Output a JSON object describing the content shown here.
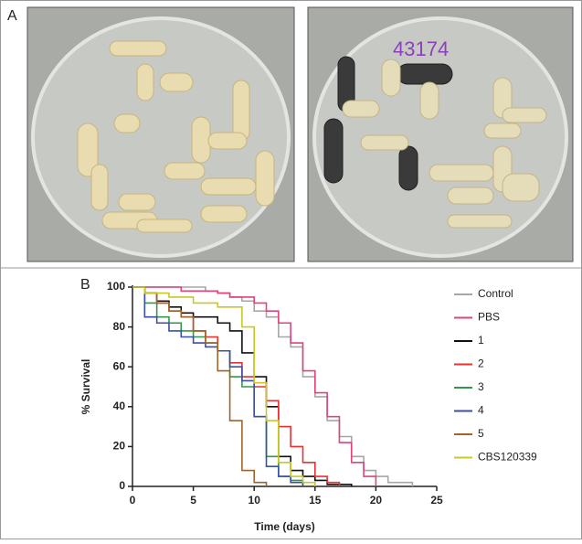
{
  "panel_a": {
    "label": "A"
  },
  "chart_data": {
    "type": "step",
    "label": "B",
    "xlabel": "Time (days)",
    "ylabel": "% Survival",
    "x": [
      0,
      1,
      2,
      3,
      4,
      5,
      6,
      7,
      8,
      9,
      10,
      11,
      12,
      13,
      14,
      15,
      16,
      17,
      18,
      19,
      20,
      21,
      22,
      23
    ],
    "xlim": [
      0,
      25
    ],
    "xticks": [
      0,
      5,
      10,
      15,
      20,
      25
    ],
    "ylim": [
      0,
      100
    ],
    "yticks": [
      0,
      20,
      40,
      60,
      80,
      100
    ],
    "legend": "right",
    "series": [
      {
        "name": "Control",
        "color": "#a6a6a6",
        "values": [
          100,
          100,
          100,
          100,
          100,
          100,
          98,
          97,
          95,
          93,
          88,
          85,
          75,
          70,
          55,
          45,
          33,
          25,
          15,
          8,
          5,
          2,
          2,
          0
        ]
      },
      {
        "name": "PBS",
        "color": "#e0447a",
        "values": [
          100,
          100,
          100,
          100,
          98,
          98,
          98,
          97,
          95,
          95,
          92,
          88,
          82,
          72,
          58,
          47,
          35,
          22,
          12,
          5,
          0,
          null,
          null,
          null
        ]
      },
      {
        "name": "1",
        "color": "#111111",
        "values": [
          100,
          97,
          93,
          90,
          87,
          85,
          85,
          82,
          78,
          67,
          55,
          40,
          15,
          8,
          5,
          3,
          1,
          1,
          0,
          null,
          null,
          null,
          null,
          null
        ]
      },
      {
        "name": "2",
        "color": "#e8322e",
        "values": [
          100,
          97,
          92,
          88,
          85,
          78,
          75,
          68,
          62,
          55,
          50,
          43,
          30,
          20,
          12,
          5,
          2,
          0,
          null,
          null,
          null,
          null,
          null,
          null
        ]
      },
      {
        "name": "3",
        "color": "#2e9a4a",
        "values": [
          100,
          92,
          85,
          82,
          78,
          75,
          72,
          68,
          55,
          50,
          35,
          15,
          5,
          3,
          0,
          null,
          null,
          null,
          null,
          null,
          null,
          null,
          null,
          null
        ]
      },
      {
        "name": "4",
        "color": "#3c4fa8",
        "values": [
          100,
          85,
          82,
          78,
          75,
          72,
          70,
          68,
          60,
          53,
          35,
          10,
          5,
          2,
          0,
          null,
          null,
          null,
          null,
          null,
          null,
          null,
          null,
          null
        ]
      },
      {
        "name": "5",
        "color": "#a0642a",
        "values": [
          100,
          97,
          92,
          88,
          85,
          78,
          72,
          58,
          33,
          8,
          2,
          0,
          null,
          null,
          null,
          null,
          null,
          null,
          null,
          null,
          null,
          null,
          null,
          null
        ]
      },
      {
        "name": "CBS120339",
        "color": "#c8c82a",
        "values": [
          100,
          97,
          97,
          95,
          95,
          92,
          92,
          90,
          90,
          80,
          52,
          33,
          12,
          5,
          2,
          0,
          null,
          null,
          null,
          null,
          null,
          null,
          null,
          null
        ]
      }
    ]
  }
}
